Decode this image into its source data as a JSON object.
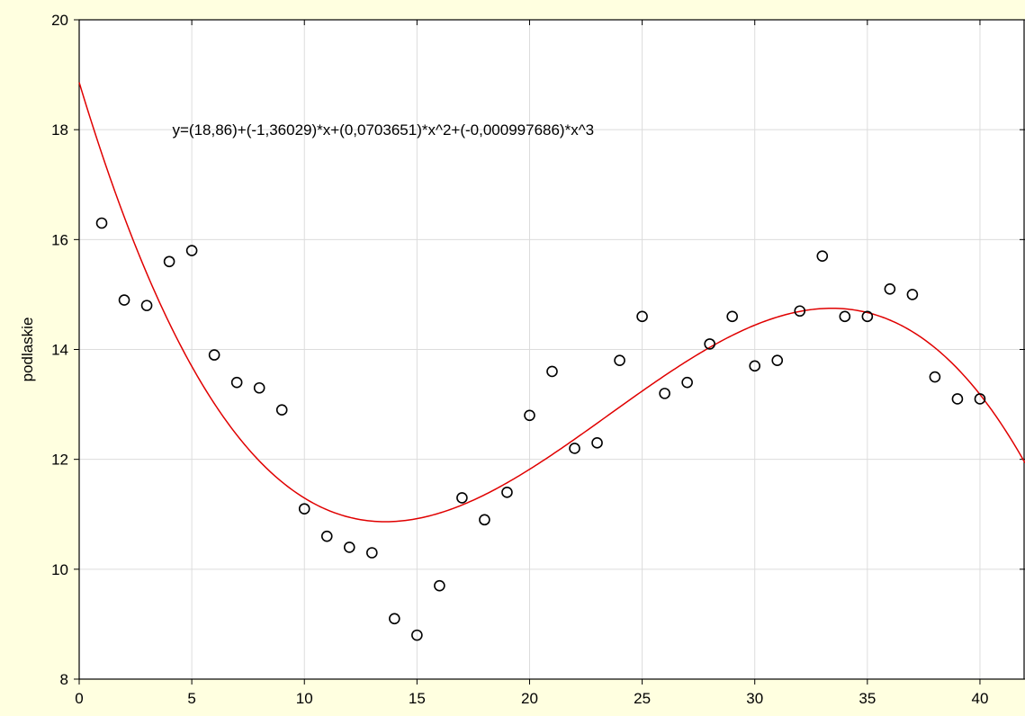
{
  "chart_data": {
    "type": "scatter",
    "title": "",
    "xlabel": "",
    "ylabel": "podlaskie",
    "xlim": [
      0,
      42
    ],
    "ylim": [
      8,
      20
    ],
    "xticks": [
      0,
      5,
      10,
      15,
      20,
      25,
      30,
      35,
      40
    ],
    "yticks": [
      8,
      10,
      12,
      14,
      16,
      18,
      20
    ],
    "grid": true,
    "colors": {
      "background": "#FFFFE0",
      "plot_background": "#FFFFFF",
      "fit_line": "#E00000",
      "points": "#000000",
      "grid": "#DCDCDC"
    },
    "series": [
      {
        "marker": "open-circle",
        "x": [
          1,
          2,
          3,
          4,
          5,
          6,
          7,
          8,
          9,
          10,
          11,
          12,
          13,
          14,
          15,
          16,
          17,
          18,
          19,
          20,
          21,
          22,
          23,
          24,
          25,
          26,
          27,
          28,
          29,
          30,
          31,
          32,
          33,
          34,
          35,
          36,
          37,
          38,
          39,
          40
        ],
        "y": [
          16.3,
          14.9,
          14.8,
          15.6,
          15.8,
          13.9,
          13.4,
          13.3,
          12.9,
          11.1,
          10.6,
          10.4,
          10.3,
          9.1,
          8.8,
          9.7,
          11.3,
          10.9,
          11.4,
          12.8,
          13.6,
          12.2,
          12.3,
          13.8,
          14.6,
          13.2,
          13.4,
          14.1,
          14.6,
          13.7,
          13.8,
          14.7,
          15.7,
          14.6,
          14.6,
          15.1,
          15.0,
          13.5,
          13.1,
          13.1
        ]
      }
    ],
    "fit": {
      "kind": "polynomial",
      "coefficients": [
        18.86,
        -1.36029,
        0.0703651,
        -0.000997686
      ],
      "equation_label": "y=(18,86)+(-1,36029)*x+(0,0703651)*x^2+(-0,000997686)*x^3"
    },
    "annotations": [
      {
        "text": "y=(18,86)+(-1,36029)*x+(0,0703651)*x^2+(-0,000997686)*x^3",
        "x": 13.5,
        "y": 18.0
      }
    ]
  }
}
